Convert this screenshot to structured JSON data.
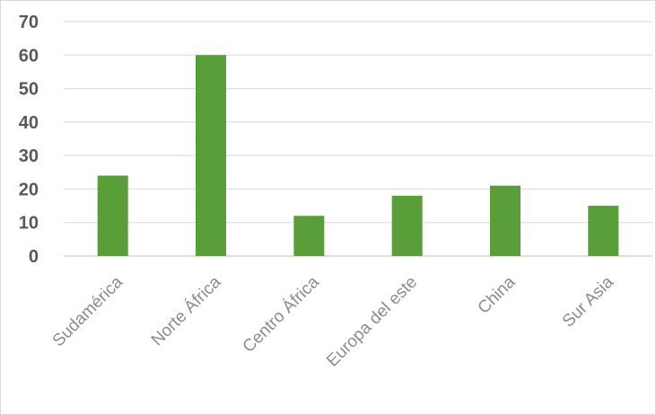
{
  "chart_data": {
    "type": "bar",
    "categories": [
      "Sudamérica",
      "Norte África",
      "Centro África",
      "Europa del este",
      "China",
      "Sur Asia"
    ],
    "values": [
      24,
      60,
      12,
      18,
      21,
      15
    ],
    "title": "",
    "xlabel": "",
    "ylabel": "",
    "ylim": [
      0,
      70
    ],
    "yticks": [
      0,
      10,
      20,
      30,
      40,
      50,
      60,
      70
    ],
    "grid": true,
    "bar_color": "#5a9e3a",
    "gridline_color": "#d9d9d9",
    "x_tick_color": "#8c8c8c",
    "y_tick_color": "#595959"
  }
}
